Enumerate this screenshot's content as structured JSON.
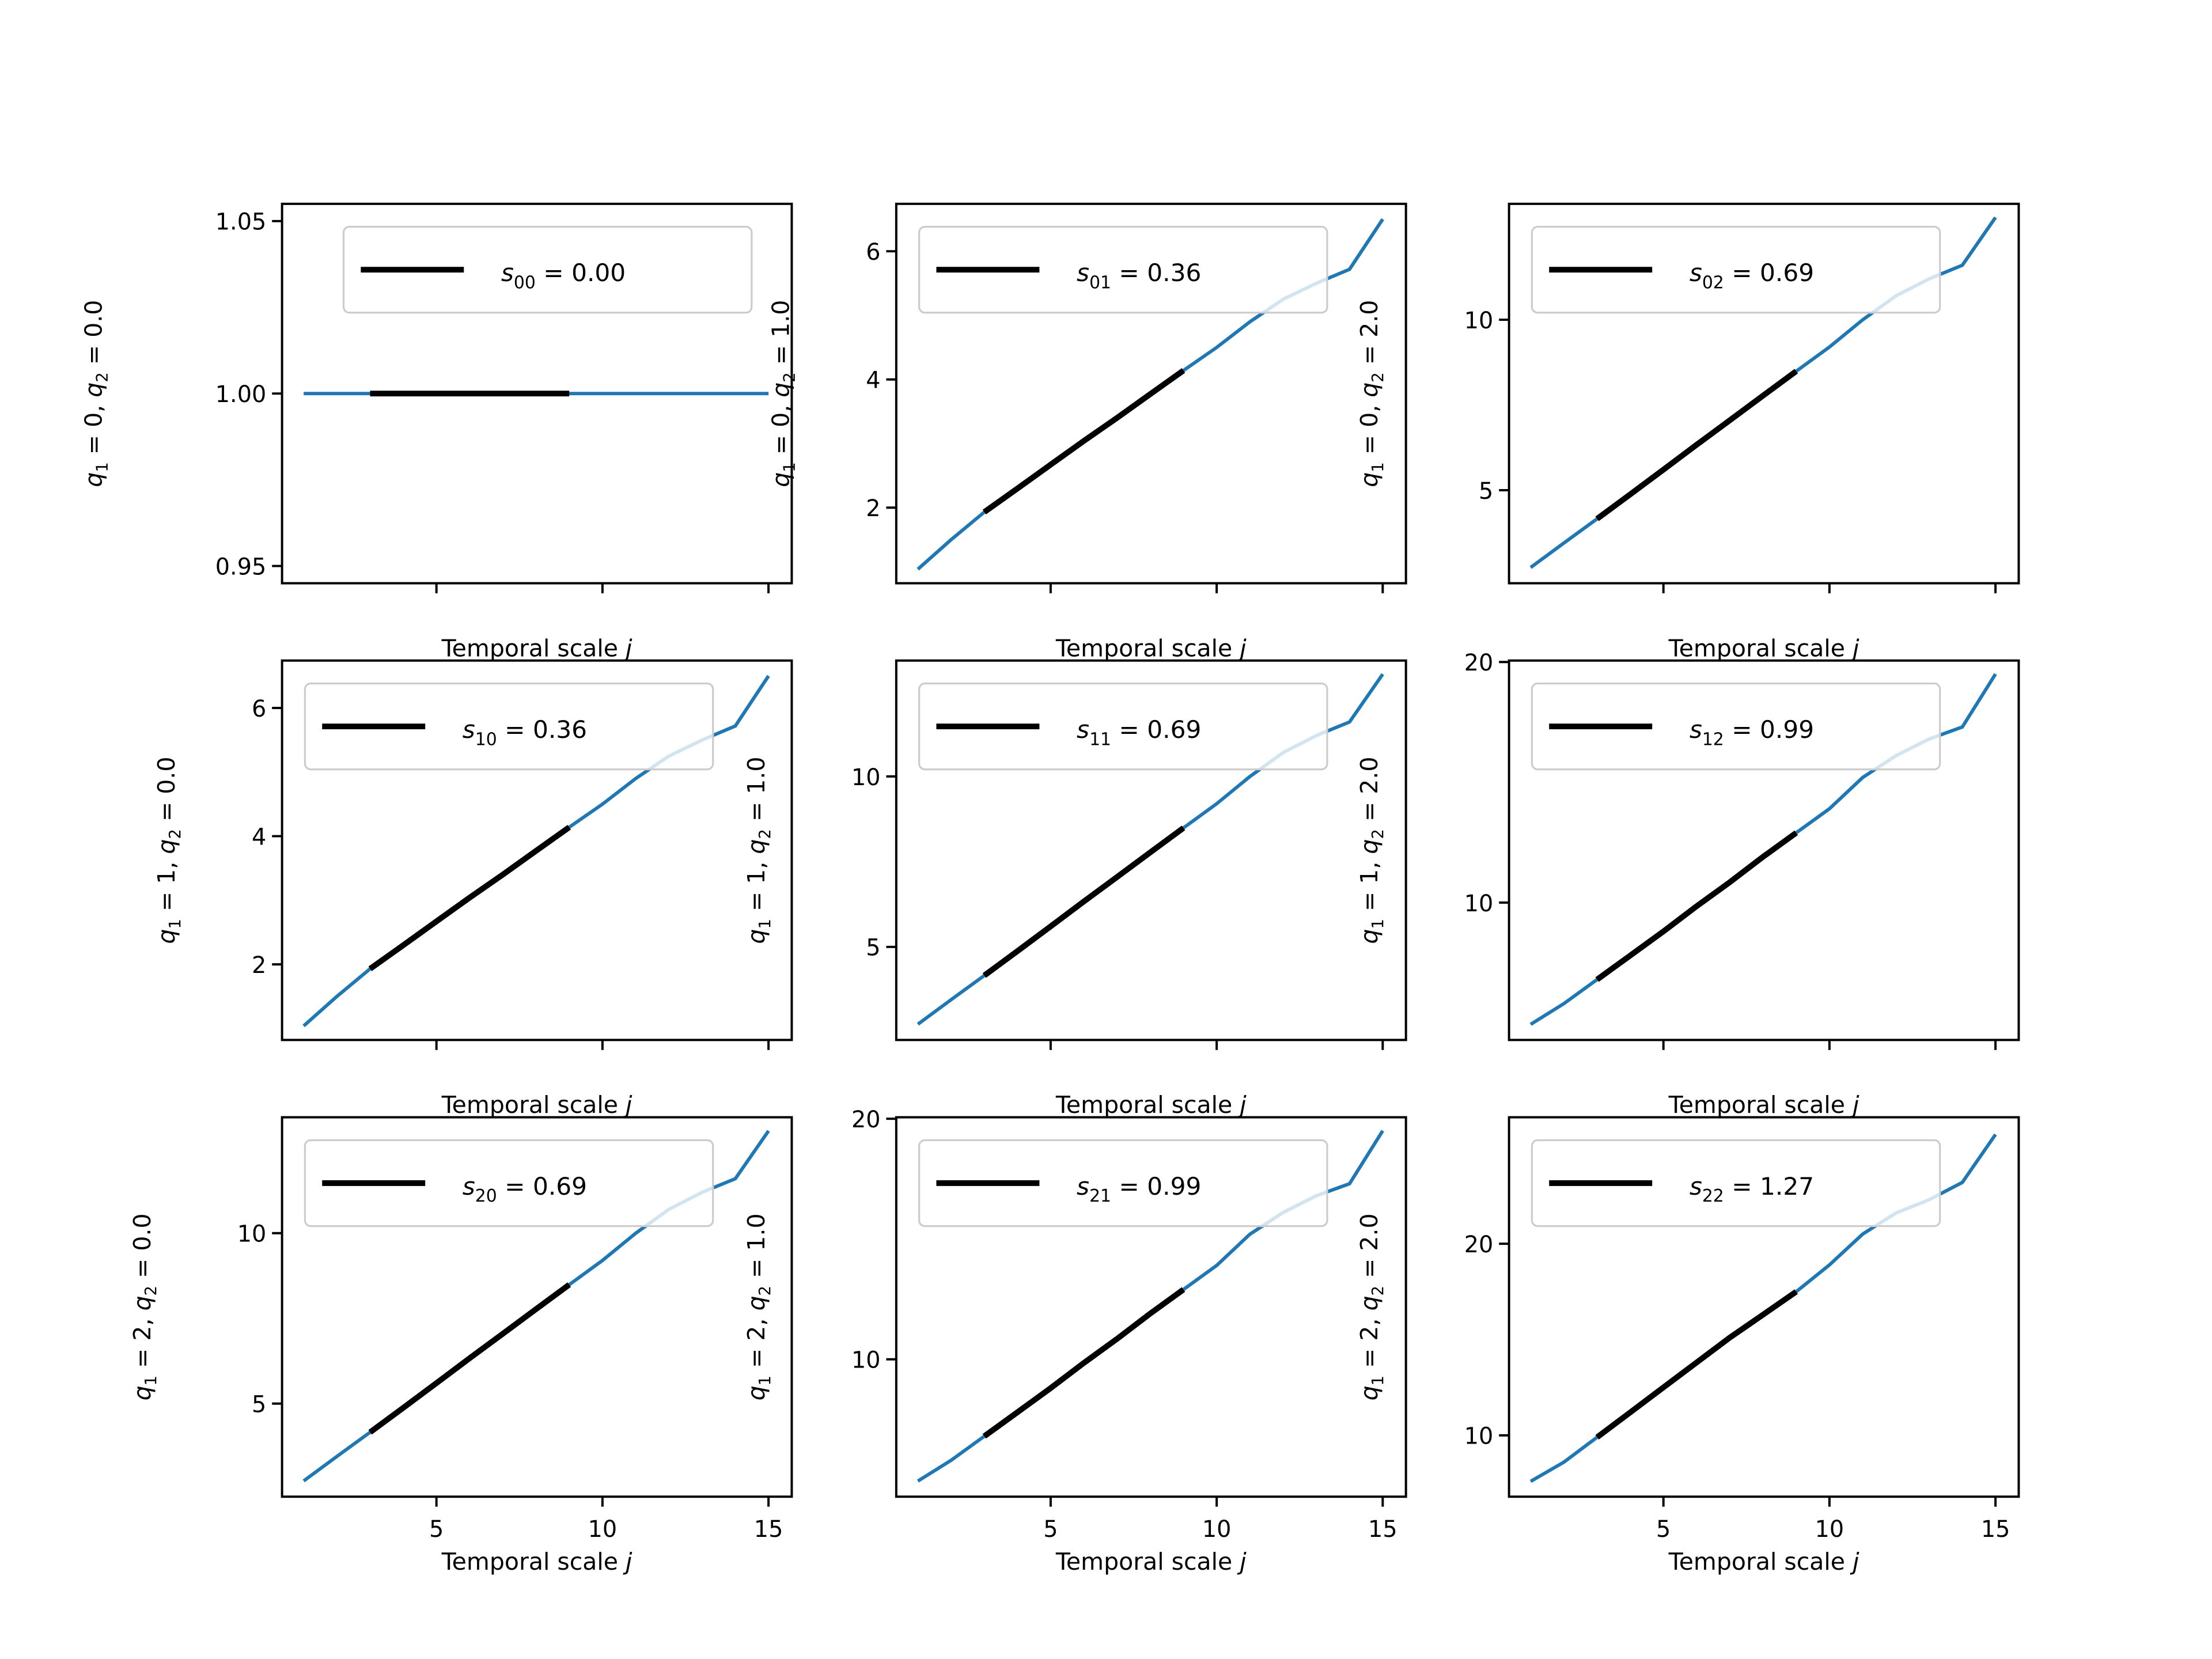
{
  "chart_data": {
    "type": "line",
    "layout": "3x3 grid",
    "xlabel": "Temporal scale j",
    "x": [
      1,
      2,
      3,
      4,
      5,
      6,
      7,
      8,
      9,
      10,
      11,
      12,
      13,
      14,
      15
    ],
    "xlim": [
      0.35,
      15.7
    ],
    "xticks": [
      5,
      10,
      15
    ],
    "fit_range": [
      3,
      9
    ],
    "colors": {
      "series": "#1f77b4",
      "fit": "#000000",
      "legend_border": "#cccccc"
    },
    "grid": false,
    "legend_placement": "upper-left",
    "panels": [
      {
        "q1": "0",
        "q2": "0.0",
        "sub": "00",
        "s": "0.00",
        "ylim": [
          0.945,
          1.055
        ],
        "yticks": [
          "0.95",
          "1.00",
          "1.05"
        ],
        "values": [
          1,
          1,
          1,
          1,
          1,
          1,
          1,
          1,
          1,
          1,
          1,
          1,
          1,
          1,
          1
        ]
      },
      {
        "q1": "0",
        "q2": "1.0",
        "sub": "01",
        "s": "0.36",
        "ylim": [
          0.82,
          6.74
        ],
        "yticks": [
          "2",
          "4",
          "6"
        ],
        "values": [
          1.04,
          1.5,
          1.93,
          2.3,
          2.67,
          3.04,
          3.4,
          3.77,
          4.14,
          4.5,
          4.9,
          5.25,
          5.5,
          5.72,
          6.5
        ]
      },
      {
        "q1": "0",
        "q2": "2.0",
        "sub": "02",
        "s": "0.69",
        "ylim": [
          2.27,
          13.4
        ],
        "yticks": [
          "5",
          "10"
        ],
        "values": [
          2.73,
          3.45,
          4.16,
          4.88,
          5.6,
          6.33,
          7.05,
          7.77,
          8.49,
          9.2,
          10.0,
          10.7,
          11.2,
          11.6,
          13.0
        ]
      },
      {
        "q1": "1",
        "q2": "0.0",
        "sub": "10",
        "s": "0.36",
        "ylim": [
          0.82,
          6.74
        ],
        "yticks": [
          "2",
          "4",
          "6"
        ],
        "values": [
          1.04,
          1.5,
          1.93,
          2.3,
          2.67,
          3.04,
          3.4,
          3.77,
          4.14,
          4.5,
          4.9,
          5.25,
          5.5,
          5.72,
          6.5
        ]
      },
      {
        "q1": "1",
        "q2": "1.0",
        "sub": "11",
        "s": "0.69",
        "ylim": [
          2.27,
          13.4
        ],
        "yticks": [
          "5",
          "10"
        ],
        "values": [
          2.73,
          3.45,
          4.16,
          4.88,
          5.6,
          6.33,
          7.05,
          7.77,
          8.49,
          9.2,
          10.0,
          10.7,
          11.2,
          11.6,
          13.0
        ]
      },
      {
        "q1": "1",
        "q2": "2.0",
        "sub": "12",
        "s": "0.99",
        "ylim": [
          4.29,
          20.06
        ],
        "yticks": [
          "10",
          "20"
        ],
        "values": [
          4.94,
          5.8,
          6.8,
          7.8,
          8.8,
          9.85,
          10.85,
          11.9,
          12.9,
          13.9,
          15.2,
          16.1,
          16.8,
          17.3,
          19.5
        ]
      },
      {
        "q1": "2",
        "q2": "0.0",
        "sub": "20",
        "s": "0.69",
        "ylim": [
          2.27,
          13.4
        ],
        "yticks": [
          "5",
          "10"
        ],
        "values": [
          2.73,
          3.45,
          4.16,
          4.88,
          5.6,
          6.33,
          7.05,
          7.77,
          8.49,
          9.2,
          10.0,
          10.7,
          11.2,
          11.6,
          13.0
        ]
      },
      {
        "q1": "2",
        "q2": "1.0",
        "sub": "21",
        "s": "0.99",
        "ylim": [
          4.29,
          20.06
        ],
        "yticks": [
          "10",
          "20"
        ],
        "values": [
          4.94,
          5.8,
          6.8,
          7.8,
          8.8,
          9.85,
          10.85,
          11.9,
          12.9,
          13.9,
          15.2,
          16.1,
          16.8,
          17.3,
          19.5
        ]
      },
      {
        "q1": "2",
        "q2": "2.0",
        "sub": "22",
        "s": "1.27",
        "ylim": [
          6.8,
          26.6
        ],
        "yticks": [
          "10",
          "20"
        ],
        "values": [
          7.6,
          8.6,
          9.9,
          11.2,
          12.5,
          13.8,
          15.1,
          16.3,
          17.5,
          18.9,
          20.5,
          21.6,
          22.3,
          23.2,
          25.7
        ]
      }
    ]
  }
}
